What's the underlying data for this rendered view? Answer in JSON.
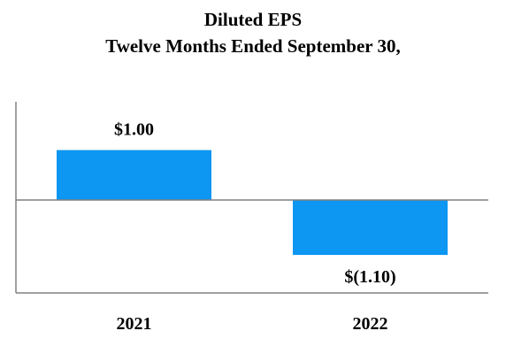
{
  "chart_data": {
    "type": "bar",
    "title": "Diluted EPS",
    "subtitle": "Twelve Months Ended September 30,",
    "categories": [
      "2021",
      "2022"
    ],
    "values": [
      1.0,
      -1.1
    ],
    "value_labels": [
      "$1.00",
      "$(1.10)"
    ],
    "ylim": [
      -2.0,
      2.0
    ],
    "grid": false,
    "legend": "none",
    "bar_color": "#0d96f2",
    "axis_color": "#808080"
  }
}
